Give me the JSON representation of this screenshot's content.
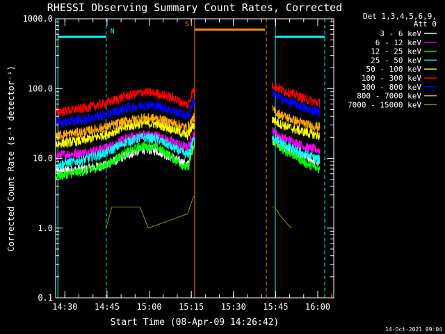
{
  "chart_data": {
    "type": "line",
    "title": "RHESSI Observing Summary Count Rates, Corrected",
    "xlabel": "Start Time (08-Apr-09 14:26:42)",
    "ylabel": "Corrected Count Rate (s⁻¹ detector⁻¹)",
    "yscale": "log",
    "ylim": [
      0.1,
      1000
    ],
    "x_range_minutes": [
      0,
      99
    ],
    "yticks": [
      {
        "value": 1000,
        "label": "1000.0"
      },
      {
        "value": 100,
        "label": "100.0"
      },
      {
        "value": 10,
        "label": "10.0"
      },
      {
        "value": 1,
        "label": "1.0"
      },
      {
        "value": 0.1,
        "label": "0.1"
      }
    ],
    "xticks": [
      {
        "minute": 3.3,
        "label": "14:30"
      },
      {
        "minute": 18.3,
        "label": "14:45"
      },
      {
        "minute": 33.3,
        "label": "15:00"
      },
      {
        "minute": 48.3,
        "label": "15:15"
      },
      {
        "minute": 63.3,
        "label": "15:30"
      },
      {
        "minute": 78.3,
        "label": "15:45"
      },
      {
        "minute": 93.3,
        "label": "16:00"
      }
    ],
    "legend_header": [
      "Det 1,3,4,5,6,9,",
      "Att 0"
    ],
    "legend_position": "top-right",
    "data_gap_minutes": [
      49.5,
      77.0
    ],
    "series": [
      {
        "name": "3 - 6 keV",
        "color": "#ffffff",
        "values": [
          [
            0,
            6.5
          ],
          [
            10,
            7
          ],
          [
            18,
            8
          ],
          [
            25,
            11
          ],
          [
            31,
            13.5
          ],
          [
            36,
            13
          ],
          [
            42,
            10
          ],
          [
            47,
            8
          ],
          [
            49,
            15
          ],
          [
            77,
            19
          ],
          [
            80,
            15
          ],
          [
            85,
            12
          ],
          [
            90,
            10
          ],
          [
            94,
            8.5
          ]
        ]
      },
      {
        "name": "6 - 12 keV",
        "color": "#ff00ff",
        "values": [
          [
            0,
            11
          ],
          [
            10,
            12
          ],
          [
            18,
            14
          ],
          [
            25,
            19
          ],
          [
            31,
            22
          ],
          [
            36,
            21
          ],
          [
            42,
            17
          ],
          [
            47,
            14
          ],
          [
            49,
            22
          ],
          [
            77,
            25
          ],
          [
            80,
            20
          ],
          [
            85,
            17
          ],
          [
            90,
            14
          ],
          [
            94,
            13
          ]
        ]
      },
      {
        "name": "12 - 25 keV",
        "color": "#00ff00",
        "values": [
          [
            0,
            5.5
          ],
          [
            10,
            6.5
          ],
          [
            18,
            8
          ],
          [
            25,
            12
          ],
          [
            31,
            15
          ],
          [
            36,
            14.5
          ],
          [
            42,
            10
          ],
          [
            47,
            7
          ],
          [
            49,
            14
          ],
          [
            77,
            19
          ],
          [
            80,
            14
          ],
          [
            85,
            11
          ],
          [
            90,
            8
          ],
          [
            94,
            7
          ]
        ]
      },
      {
        "name": "25 - 50 keV",
        "color": "#00ffff",
        "values": [
          [
            0,
            8
          ],
          [
            10,
            9.5
          ],
          [
            18,
            12
          ],
          [
            25,
            17
          ],
          [
            31,
            20
          ],
          [
            36,
            19
          ],
          [
            42,
            14
          ],
          [
            47,
            11
          ],
          [
            49,
            18
          ],
          [
            77,
            21
          ],
          [
            80,
            17
          ],
          [
            85,
            13
          ],
          [
            90,
            11
          ],
          [
            94,
            9.5
          ]
        ]
      },
      {
        "name": "50 - 100 keV",
        "color": "#ffff00",
        "values": [
          [
            0,
            16
          ],
          [
            10,
            18
          ],
          [
            18,
            22
          ],
          [
            25,
            28
          ],
          [
            31,
            32
          ],
          [
            36,
            31
          ],
          [
            42,
            26
          ],
          [
            47,
            21
          ],
          [
            49,
            30
          ],
          [
            77,
            36
          ],
          [
            80,
            31
          ],
          [
            85,
            26
          ],
          [
            90,
            23
          ],
          [
            94,
            21
          ]
        ]
      },
      {
        "name": "100 - 300 keV",
        "color": "#ff0000",
        "values": [
          [
            0,
            46
          ],
          [
            10,
            52
          ],
          [
            18,
            62
          ],
          [
            25,
            78
          ],
          [
            31,
            88
          ],
          [
            36,
            86
          ],
          [
            42,
            72
          ],
          [
            47,
            58
          ],
          [
            49,
            95
          ],
          [
            77,
            115
          ],
          [
            80,
            98
          ],
          [
            85,
            82
          ],
          [
            90,
            68
          ],
          [
            94,
            62
          ]
        ]
      },
      {
        "name": "300 - 800 keV",
        "color": "#0000ff",
        "values": [
          [
            0,
            32
          ],
          [
            10,
            36
          ],
          [
            18,
            42
          ],
          [
            25,
            52
          ],
          [
            31,
            58
          ],
          [
            36,
            57
          ],
          [
            42,
            48
          ],
          [
            47,
            40
          ],
          [
            49,
            65
          ],
          [
            77,
            85
          ],
          [
            80,
            72
          ],
          [
            85,
            60
          ],
          [
            90,
            50
          ],
          [
            94,
            46
          ]
        ]
      },
      {
        "name": "800 - 7000 keV",
        "color": "#ffaa00",
        "values": [
          [
            0,
            21
          ],
          [
            10,
            24
          ],
          [
            18,
            28
          ],
          [
            25,
            34
          ],
          [
            31,
            38
          ],
          [
            36,
            37
          ],
          [
            42,
            32
          ],
          [
            47,
            27
          ],
          [
            49,
            38
          ],
          [
            77,
            50
          ],
          [
            80,
            42
          ],
          [
            85,
            35
          ],
          [
            90,
            30
          ],
          [
            94,
            28
          ]
        ]
      },
      {
        "name": "7000 - 15000 keV",
        "color": "#888800",
        "values": [
          [
            18,
            1
          ],
          [
            20,
            2
          ],
          [
            30,
            2
          ],
          [
            33,
            1
          ],
          [
            47,
            1.6
          ],
          [
            49,
            2.8
          ],
          [
            77,
            2
          ],
          [
            78,
            2
          ],
          [
            80,
            1.5
          ],
          [
            82,
            1.2
          ],
          [
            84,
            1
          ]
        ]
      }
    ],
    "vertical_markers": [
      {
        "minute": 0.8,
        "color": "#00ffff",
        "style": "solid"
      },
      {
        "minute": 18.0,
        "color": "#00ffff",
        "style": "dashed"
      },
      {
        "minute": 49.5,
        "color": "#ff8800",
        "style": "solid"
      },
      {
        "minute": 75.0,
        "color": "#ff8800",
        "style": "dashed"
      },
      {
        "minute": 78.2,
        "color": "#00ffff",
        "style": "solid"
      },
      {
        "minute": 95.8,
        "color": "#00ffff",
        "style": "dashed"
      }
    ],
    "flag_bars": [
      {
        "label": "N",
        "color": "#00ffff",
        "start": 0.8,
        "end": 18.0,
        "level": 550
      },
      {
        "label": "S",
        "color": "#ff8800",
        "start": 49.5,
        "end": 74.5,
        "level": 700
      },
      {
        "label": "",
        "color": "#00ffff",
        "start": 78.2,
        "end": 95.8,
        "level": 550
      }
    ],
    "footer_date": "14-Oct-2021 09:04"
  }
}
